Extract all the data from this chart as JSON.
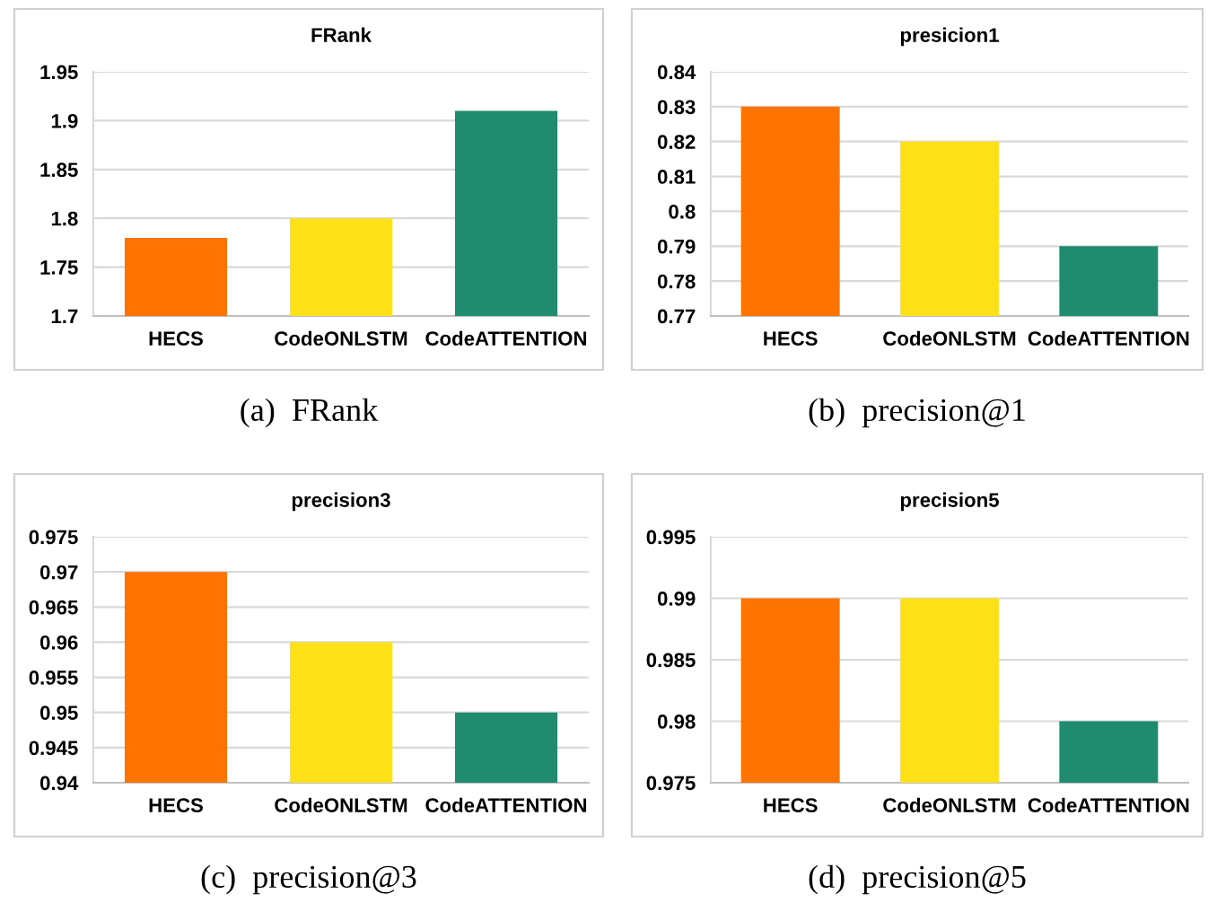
{
  "chart_data": [
    {
      "type": "bar",
      "title": "FRank",
      "categories": [
        "HECS",
        "CodeONLSTM",
        "CodeATTENTION"
      ],
      "values": [
        1.78,
        1.8,
        1.91
      ],
      "colors": [
        "#ff7300",
        "#ffe11a",
        "#208b6f"
      ],
      "ylim": [
        1.7,
        1.95
      ],
      "yticks": [
        1.7,
        1.75,
        1.8,
        1.85,
        1.9,
        1.95
      ],
      "grid": "y",
      "annotations": [
        "(a)  FRank"
      ]
    },
    {
      "type": "bar",
      "title": "presicion1",
      "categories": [
        "HECS",
        "CodeONLSTM",
        "CodeATTENTION"
      ],
      "values": [
        0.83,
        0.82,
        0.79
      ],
      "colors": [
        "#ff7300",
        "#ffe11a",
        "#208b6f"
      ],
      "ylim": [
        0.77,
        0.84
      ],
      "yticks": [
        0.77,
        0.78,
        0.79,
        0.8,
        0.81,
        0.82,
        0.83,
        0.84
      ],
      "grid": "y",
      "annotations": [
        "(b)  precision@1"
      ]
    },
    {
      "type": "bar",
      "title": "precision3",
      "categories": [
        "HECS",
        "CodeONLSTM",
        "CodeATTENTION"
      ],
      "values": [
        0.97,
        0.96,
        0.95
      ],
      "colors": [
        "#ff7300",
        "#ffe11a",
        "#208b6f"
      ],
      "ylim": [
        0.94,
        0.975
      ],
      "yticks": [
        0.94,
        0.945,
        0.95,
        0.955,
        0.96,
        0.965,
        0.97,
        0.975
      ],
      "grid": "y",
      "annotations": [
        "(c)  precision@3"
      ]
    },
    {
      "type": "bar",
      "title": "precision5",
      "categories": [
        "HECS",
        "CodeONLSTM",
        "CodeATTENTION"
      ],
      "values": [
        0.99,
        0.99,
        0.98
      ],
      "colors": [
        "#ff7300",
        "#ffe11a",
        "#208b6f"
      ],
      "ylim": [
        0.975,
        0.995
      ],
      "yticks": [
        0.975,
        0.98,
        0.985,
        0.99,
        0.995
      ],
      "grid": "y",
      "annotations": [
        "(d)  precision@5"
      ]
    }
  ]
}
